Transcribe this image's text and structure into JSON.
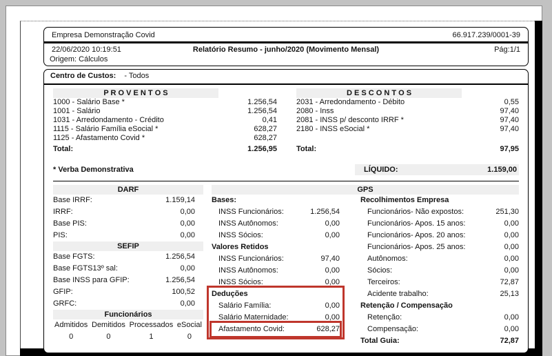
{
  "colors": {
    "highlight": "#bf362c",
    "section_bar": "#efefef"
  },
  "header": {
    "company": "Empresa Demonstração Covid",
    "cnpj": "66.917.239/0001-39",
    "datetime": "22/06/2020 10:19:51",
    "title": "Relatório Resumo - junho/2020 (Movimento Mensal)",
    "page": "Pág:1/1",
    "origin": "Origem: Cálculos"
  },
  "cost_center": {
    "label": "Centro de Custos:",
    "value": "- Todos"
  },
  "proventos": {
    "title": "P R O V E N T O S",
    "items": [
      {
        "label": "1000 - Salário Base *",
        "value": "1.256,54"
      },
      {
        "label": "1001 - Salário",
        "value": "1.256,54"
      },
      {
        "label": "1031 - Arredondamento - Crédito",
        "value": "0,41"
      },
      {
        "label": "1115 - Salário Família eSocial *",
        "value": "628,27"
      },
      {
        "label": "1125 - Afastamento Covid *",
        "value": "628,27"
      }
    ],
    "total": {
      "label": "Total:",
      "value": "1.256,95"
    }
  },
  "descontos": {
    "title": "D E S C O N T O S",
    "items": [
      {
        "label": "2031 - Arredondamento - Débito",
        "value": "0,55"
      },
      {
        "label": "2080 - Inss",
        "value": "97,40"
      },
      {
        "label": "2081 - INSS p/ desconto IRRF *",
        "value": "97,40"
      },
      {
        "label": "2180 - INSS eSocial *",
        "value": "97,40"
      }
    ],
    "total": {
      "label": "Total:",
      "value": "97,95"
    }
  },
  "footnote": "* Verba Demonstrativa",
  "liquido": {
    "label": "LÍQUIDO:",
    "value": "1.159,00"
  },
  "darf": {
    "title": "DARF",
    "items": [
      {
        "label": "Base IRRF:",
        "value": "1.159,14"
      },
      {
        "label": "IRRF:",
        "value": "0,00"
      },
      {
        "label": "Base PIS:",
        "value": "0,00"
      },
      {
        "label": "PIS:",
        "value": "0,00"
      }
    ]
  },
  "sefip": {
    "title": "SEFIP",
    "items": [
      {
        "label": "Base FGTS:",
        "value": "1.256,54"
      },
      {
        "label": "Base FGTS13º sal:",
        "value": "0,00"
      },
      {
        "label": "Base INSS para GFIP:",
        "value": "1.256,54"
      },
      {
        "label": "GFIP:",
        "value": "100,52"
      },
      {
        "label": "GRFC:",
        "value": "0,00"
      }
    ]
  },
  "funcionarios": {
    "title": "Funcionários",
    "cols": [
      {
        "label": "Admitidos",
        "value": "0"
      },
      {
        "label": "Demitidos",
        "value": "0"
      },
      {
        "label": "Processados",
        "value": "1"
      },
      {
        "label": "eSocial",
        "value": "0"
      }
    ]
  },
  "gps": {
    "title": "GPS",
    "bases": {
      "header": "Bases:",
      "items": [
        {
          "label": "INSS Funcionários:",
          "value": "1.256,54"
        },
        {
          "label": "INSS Autônomos:",
          "value": "0,00"
        },
        {
          "label": "INSS Sócios:",
          "value": "0,00"
        }
      ]
    },
    "valores_retidos": {
      "header": "Valores Retidos",
      "items": [
        {
          "label": "INSS Funcionários:",
          "value": "97,40"
        },
        {
          "label": "INSS Autônomos:",
          "value": "0,00"
        },
        {
          "label": "INSS Sócios:",
          "value": "0,00"
        }
      ]
    },
    "deducoes": {
      "header": "Deduções",
      "items": [
        {
          "label": "Salário Família:",
          "value": "0,00"
        },
        {
          "label": "Salário Maternidade:",
          "value": "0,00"
        },
        {
          "label": "Afastamento Covid:",
          "value": "628,27"
        }
      ]
    },
    "recolhimentos": {
      "header": "Recolhimentos Empresa",
      "items": [
        {
          "label": "Funcionários- Não expostos:",
          "value": "251,30"
        },
        {
          "label": "Funcionários- Apos. 15 anos:",
          "value": "0,00"
        },
        {
          "label": "Funcionários- Apos. 20 anos:",
          "value": "0,00"
        },
        {
          "label": "Funcionários- Apos. 25 anos:",
          "value": "0,00"
        },
        {
          "label": "Autônomos:",
          "value": "0,00"
        },
        {
          "label": "Sócios:",
          "value": "0,00"
        },
        {
          "label": "Terceiros:",
          "value": "72,87"
        },
        {
          "label": "Acidente trabalho:",
          "value": "25,13"
        }
      ]
    },
    "retencao": {
      "header": "Retenção / Compensação",
      "items": [
        {
          "label": "Retenção:",
          "value": "0,00"
        },
        {
          "label": "Compensação:",
          "value": "0,00"
        }
      ]
    },
    "total_guia": {
      "label": "Total Guia:",
      "value": "72,87"
    }
  }
}
